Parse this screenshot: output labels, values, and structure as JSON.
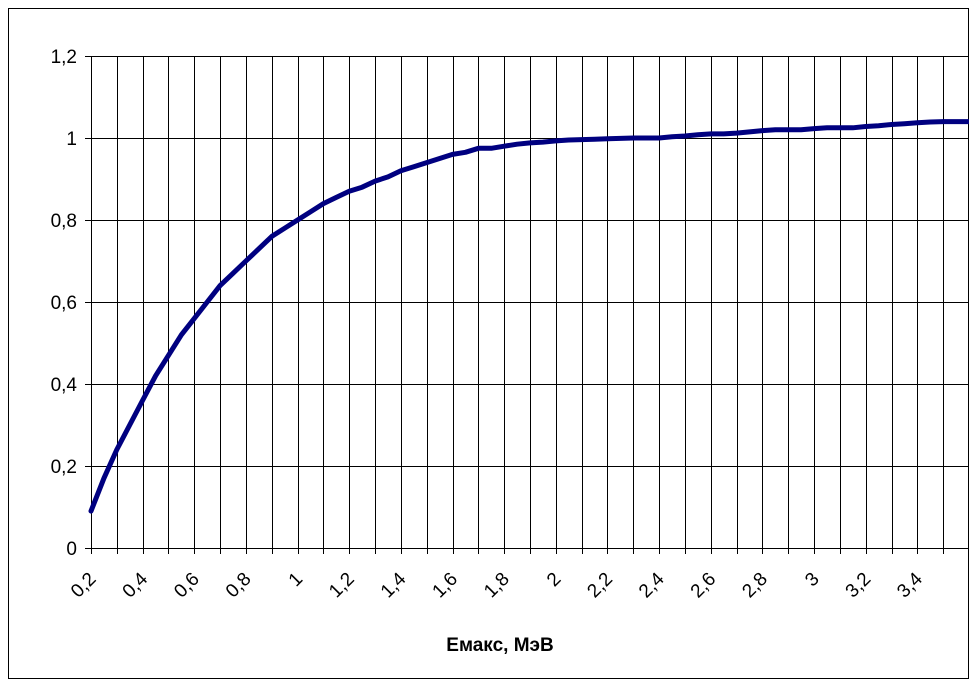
{
  "chart_data": {
    "type": "line",
    "title": "",
    "xlabel": "Емакс, МэВ",
    "ylabel": "",
    "xlim": [
      0.2,
      3.6
    ],
    "ylim": [
      0,
      1.2
    ],
    "grid": "vertical-lines-and-horizontal-at-ticks",
    "legend": "none",
    "y_ticks": [
      "0",
      "0,2",
      "0,4",
      "0,6",
      "0,8",
      "1",
      "1,2"
    ],
    "y_tick_values": [
      0,
      0.2,
      0.4,
      0.6,
      0.8,
      1.0,
      1.2
    ],
    "x_ticks": [
      "0,2",
      "0,4",
      "0,6",
      "0,8",
      "1",
      "1,2",
      "1,4",
      "1,6",
      "1,8",
      "2",
      "2,2",
      "2,4",
      "2,6",
      "2,8",
      "3",
      "3,2",
      "3,4"
    ],
    "x_tick_values": [
      0.2,
      0.4,
      0.6,
      0.8,
      1.0,
      1.2,
      1.4,
      1.6,
      1.8,
      2.0,
      2.2,
      2.4,
      2.6,
      2.8,
      3.0,
      3.2,
      3.4
    ],
    "series": [
      {
        "color": "#000080",
        "x": [
          0.2,
          0.25,
          0.3,
          0.35,
          0.4,
          0.45,
          0.5,
          0.55,
          0.6,
          0.65,
          0.7,
          0.75,
          0.8,
          0.85,
          0.9,
          0.95,
          1.0,
          1.05,
          1.1,
          1.15,
          1.2,
          1.25,
          1.3,
          1.35,
          1.4,
          1.45,
          1.5,
          1.55,
          1.6,
          1.65,
          1.7,
          1.75,
          1.8,
          1.85,
          1.9,
          1.95,
          2.0,
          2.05,
          2.1,
          2.15,
          2.2,
          2.25,
          2.3,
          2.35,
          2.4,
          2.45,
          2.5,
          2.55,
          2.6,
          2.65,
          2.7,
          2.75,
          2.8,
          2.85,
          2.9,
          2.95,
          3.0,
          3.05,
          3.1,
          3.15,
          3.2,
          3.25,
          3.3,
          3.35,
          3.4,
          3.45,
          3.5,
          3.55,
          3.6
        ],
        "values": [
          0.09,
          0.17,
          0.24,
          0.3,
          0.36,
          0.42,
          0.47,
          0.52,
          0.56,
          0.6,
          0.64,
          0.67,
          0.7,
          0.73,
          0.76,
          0.78,
          0.8,
          0.82,
          0.84,
          0.855,
          0.87,
          0.88,
          0.895,
          0.905,
          0.92,
          0.93,
          0.94,
          0.95,
          0.96,
          0.965,
          0.975,
          0.975,
          0.98,
          0.985,
          0.988,
          0.99,
          0.993,
          0.995,
          0.996,
          0.997,
          0.998,
          0.999,
          1.0,
          1.0,
          1.0,
          1.003,
          1.005,
          1.008,
          1.01,
          1.01,
          1.012,
          1.015,
          1.018,
          1.02,
          1.02,
          1.02,
          1.023,
          1.025,
          1.025,
          1.025,
          1.028,
          1.03,
          1.033,
          1.035,
          1.037,
          1.039,
          1.04,
          1.04,
          1.04
        ]
      }
    ]
  }
}
